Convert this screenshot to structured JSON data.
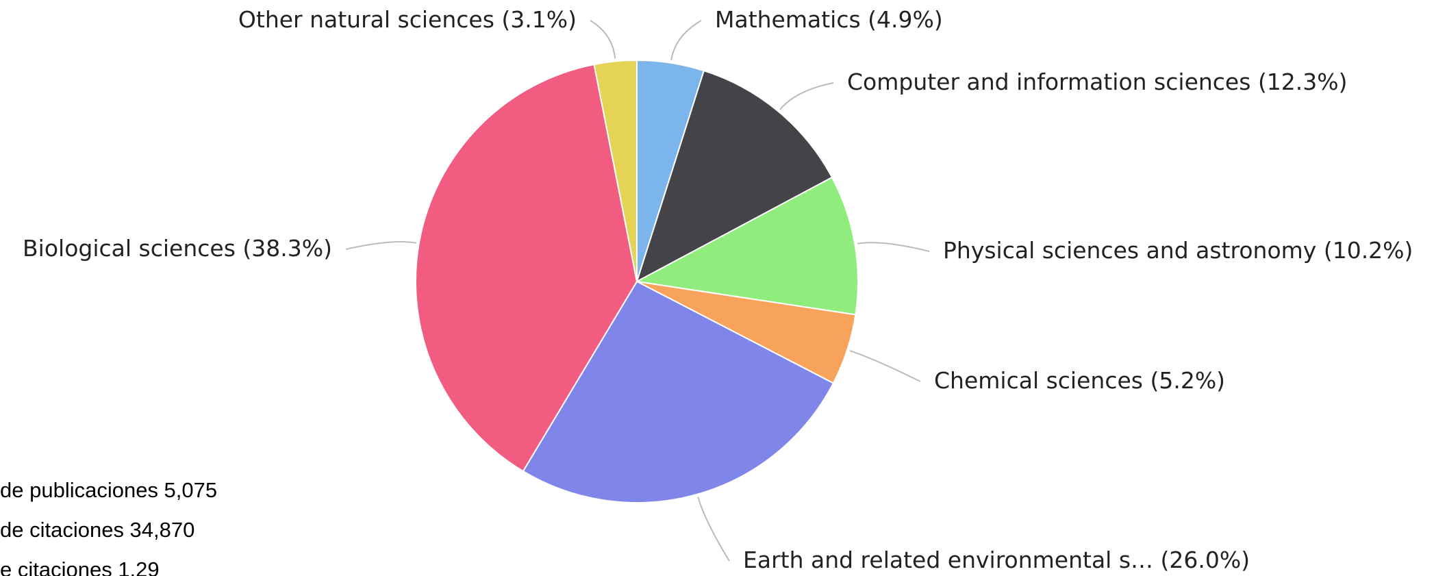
{
  "chart_data": {
    "type": "pie",
    "categories": [
      "Mathematics",
      "Computer and information sciences",
      "Physical sciences and astronomy",
      "Chemical sciences",
      "Earth and related environmental s…",
      "Biological sciences",
      "Other natural sciences"
    ],
    "values": [
      4.9,
      12.3,
      10.2,
      5.2,
      26.0,
      38.3,
      3.1
    ],
    "value_labels": [
      "(4.9%)",
      "(12.3%)",
      "(10.2%)",
      "(5.2%)",
      "(26.0%)",
      "(38.3%)",
      "(3.1%)"
    ],
    "colors": [
      "#7cb5ec",
      "#434348",
      "#90ed7d",
      "#f7a35c",
      "#8085e9",
      "#f15c80",
      "#e4d354"
    ]
  },
  "stats": [
    "de publicaciones 5,075",
    "de citaciones 34,870",
    "e citaciones 1.29"
  ]
}
